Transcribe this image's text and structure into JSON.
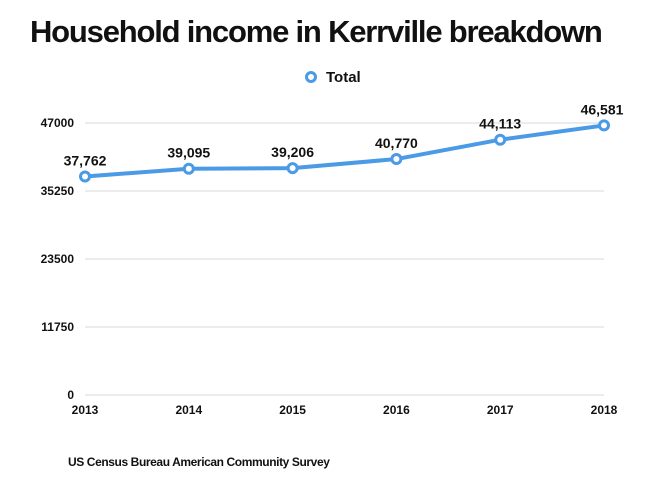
{
  "chart_data": {
    "type": "line",
    "title": "Household income in Kerrville breakdown",
    "categories": [
      "2013",
      "2014",
      "2015",
      "2016",
      "2017",
      "2018"
    ],
    "series": [
      {
        "name": "Total",
        "values": [
          37762,
          39095,
          39206,
          40770,
          44113,
          46581
        ],
        "data_labels": [
          "37,762",
          "39,095",
          "39,206",
          "40,770",
          "44,113",
          "46,581"
        ]
      }
    ],
    "y_ticks": [
      0,
      11750,
      23500,
      35250,
      47000
    ],
    "y_tick_labels": [
      "0",
      "11750",
      "23500",
      "35250",
      "47000"
    ],
    "ylim": [
      0,
      47000
    ],
    "xlabel": "",
    "ylabel": "",
    "grid": true,
    "legend_position": "top-center",
    "source": "US Census Bureau American Community Survey"
  },
  "colors": {
    "series_line": "#4a9ae6",
    "marker_fill": "#ffffff",
    "grid": "#d9d9d9",
    "text": "#111111"
  }
}
